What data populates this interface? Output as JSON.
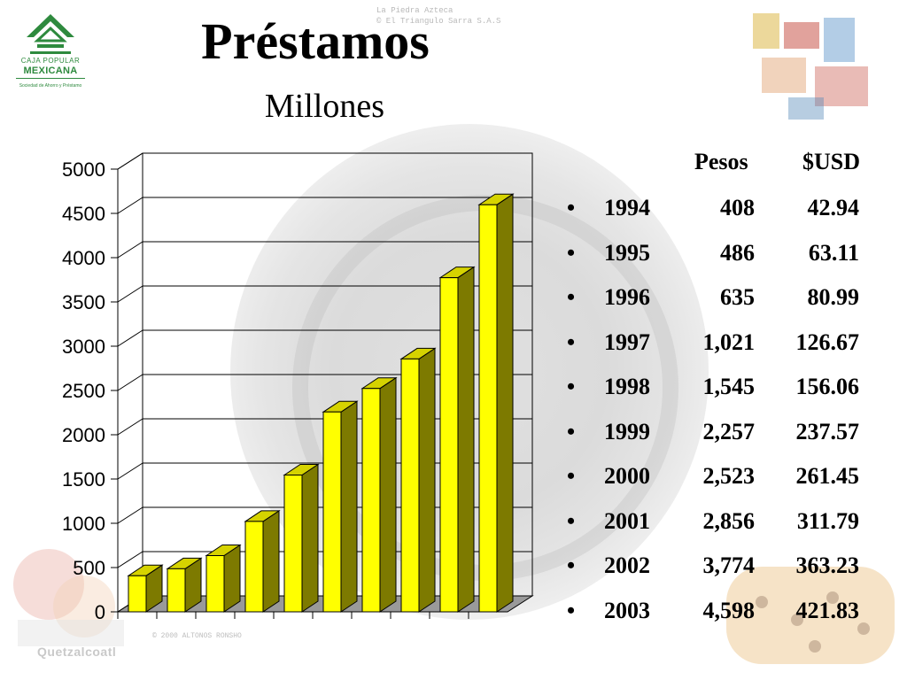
{
  "header": {
    "title": "Préstamos",
    "subtitle": "Millones",
    "watermark_line1": "La  Piedra  Azteca",
    "watermark_line2": "© El Triangulo Sarra  S.A.S"
  },
  "logo": {
    "line1": "CAJA POPULAR",
    "line2": "MEXICANA",
    "line3": "Sociedad de Ahorro y Préstamo"
  },
  "footer": {
    "caption": "Quetzalcoatl",
    "copyright": "© 2000  ALTONOS  RONSHO"
  },
  "colors": {
    "bar_front": "#ffff00",
    "bar_side": "#7d7a00",
    "bar_top": "#d6d300",
    "grid": "#000000",
    "logo_green": "#2e8a3e"
  },
  "chart_data": {
    "type": "bar",
    "categories": [
      "1994",
      "1995",
      "1996",
      "1997",
      "1998",
      "1999",
      "2000",
      "2001",
      "2002",
      "2003"
    ],
    "values": [
      408,
      486,
      635,
      1021,
      1545,
      2257,
      2523,
      2856,
      3774,
      4598
    ],
    "title": "Préstamos",
    "subtitle": "Millones",
    "ylim": [
      0,
      5000
    ],
    "yticks": [
      0,
      500,
      1000,
      1500,
      2000,
      2500,
      3000,
      3500,
      4000,
      4500,
      5000
    ],
    "grid": true,
    "style": "3d"
  },
  "table": {
    "headers": {
      "pesos": "Pesos",
      "usd": "$USD"
    },
    "bullet": "•",
    "rows": [
      {
        "year": "1994",
        "pesos": "408",
        "usd": "42.94"
      },
      {
        "year": "1995",
        "pesos": "486",
        "usd": "63.11"
      },
      {
        "year": "1996",
        "pesos": "635",
        "usd": "80.99"
      },
      {
        "year": "1997",
        "pesos": "1,021",
        "usd": "126.67"
      },
      {
        "year": "1998",
        "pesos": "1,545",
        "usd": "156.06"
      },
      {
        "year": "1999",
        "pesos": "2,257",
        "usd": "237.57"
      },
      {
        "year": "2000",
        "pesos": "2,523",
        "usd": "261.45"
      },
      {
        "year": "2001",
        "pesos": "2,856",
        "usd": "311.79"
      },
      {
        "year": "2002",
        "pesos": "3,774",
        "usd": "363.23"
      },
      {
        "year": "2003",
        "pesos": "4,598",
        "usd": "421.83"
      }
    ]
  }
}
